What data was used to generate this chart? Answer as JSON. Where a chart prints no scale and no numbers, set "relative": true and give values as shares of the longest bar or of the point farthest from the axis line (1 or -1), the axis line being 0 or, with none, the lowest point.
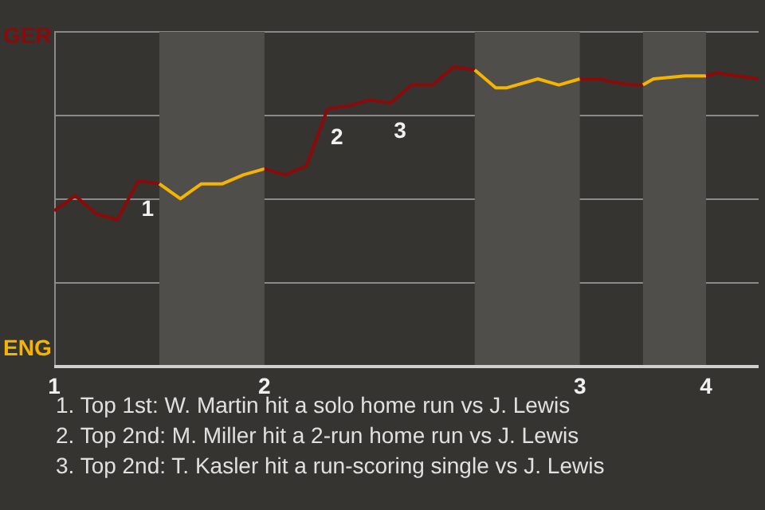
{
  "chart_data": {
    "type": "line",
    "relative": true,
    "categories": [
      "1",
      null,
      null,
      null,
      null,
      null,
      null,
      null,
      null,
      null,
      null,
      null,
      null,
      null,
      null,
      null,
      null,
      null,
      null,
      null,
      "2",
      null,
      null,
      null,
      null,
      null,
      null,
      null,
      null,
      null,
      null,
      null,
      null,
      null,
      null,
      null,
      null,
      null,
      null,
      null,
      null,
      null,
      null,
      null,
      null,
      null,
      null,
      null,
      null,
      null,
      "3",
      null,
      null,
      null,
      null,
      null,
      null,
      null,
      null,
      null,
      null,
      null,
      "4",
      null,
      null,
      null,
      null,
      null
    ],
    "series": [
      {
        "color": "#8b0a0a",
        "values": [
          0.52,
          null,
          0.57,
          null,
          0.51,
          null,
          0.49,
          null,
          0.62,
          null,
          0.61,
          null,
          null,
          null,
          null,
          null,
          null,
          null,
          null,
          null,
          null,
          null,
          null,
          null,
          null,
          null,
          null,
          null,
          null,
          null,
          null,
          null,
          null,
          null,
          null,
          null,
          null,
          null,
          null,
          null,
          null,
          null,
          null,
          null,
          null,
          null,
          null,
          null,
          null,
          null,
          null,
          null,
          null,
          null,
          null,
          null,
          null,
          null,
          null,
          null,
          null,
          null,
          null,
          null,
          null,
          null,
          null,
          null
        ]
      },
      {
        "color": "#f5b400",
        "values": [
          null,
          null,
          null,
          null,
          null,
          null,
          null,
          null,
          null,
          null,
          0.61,
          null,
          0.56,
          null,
          0.61,
          null,
          0.61,
          null,
          0.64,
          null,
          0.66,
          null,
          null,
          null,
          null,
          null,
          null,
          null,
          null,
          null,
          null,
          null,
          null,
          null,
          null,
          null,
          null,
          null,
          null,
          null,
          null,
          null,
          null,
          null,
          null,
          null,
          null,
          null,
          null,
          null,
          null,
          null,
          null,
          null,
          null,
          null,
          null,
          null,
          null,
          null,
          null,
          null,
          null,
          null,
          null,
          null,
          null,
          null
        ]
      },
      {
        "color": "#8b0a0a",
        "values": [
          null,
          null,
          null,
          null,
          null,
          null,
          null,
          null,
          null,
          null,
          null,
          null,
          null,
          null,
          null,
          null,
          null,
          null,
          null,
          null,
          0.66,
          null,
          0.64,
          null,
          0.67,
          null,
          0.86,
          null,
          0.87,
          null,
          0.89,
          null,
          0.88,
          null,
          0.94,
          null,
          0.94,
          null,
          1,
          null,
          0.99,
          null,
          null,
          null,
          null,
          null,
          null,
          null,
          null,
          null,
          null,
          null,
          null,
          null,
          null,
          null,
          null,
          null,
          null,
          null,
          null,
          null,
          null,
          null,
          null,
          null,
          null,
          null
        ]
      },
      {
        "color": "#f5b400",
        "values": [
          null,
          null,
          null,
          null,
          null,
          null,
          null,
          null,
          null,
          null,
          null,
          null,
          null,
          null,
          null,
          null,
          null,
          null,
          null,
          null,
          null,
          null,
          null,
          null,
          null,
          null,
          null,
          null,
          null,
          null,
          null,
          null,
          null,
          null,
          null,
          null,
          null,
          null,
          null,
          null,
          0.99,
          null,
          0.93,
          0.93,
          null,
          null,
          0.96,
          null,
          0.94,
          null,
          0.96,
          null,
          null,
          null,
          null,
          null,
          null,
          null,
          null,
          null,
          null,
          null,
          null,
          null,
          null,
          null,
          null,
          null
        ]
      },
      {
        "color": "#8b0a0a",
        "values": [
          null,
          null,
          null,
          null,
          null,
          null,
          null,
          null,
          null,
          null,
          null,
          null,
          null,
          null,
          null,
          null,
          null,
          null,
          null,
          null,
          null,
          null,
          null,
          null,
          null,
          null,
          null,
          null,
          null,
          null,
          null,
          null,
          null,
          null,
          null,
          null,
          null,
          null,
          null,
          null,
          null,
          null,
          null,
          null,
          null,
          null,
          null,
          null,
          null,
          null,
          0.96,
          null,
          0.96,
          0.95,
          null,
          0.94,
          0.94,
          null,
          null,
          null,
          null,
          null,
          null,
          null,
          null,
          null,
          null,
          null
        ]
      },
      {
        "color": "#f5b400",
        "values": [
          null,
          null,
          null,
          null,
          null,
          null,
          null,
          null,
          null,
          null,
          null,
          null,
          null,
          null,
          null,
          null,
          null,
          null,
          null,
          null,
          null,
          null,
          null,
          null,
          null,
          null,
          null,
          null,
          null,
          null,
          null,
          null,
          null,
          null,
          null,
          null,
          null,
          null,
          null,
          null,
          null,
          null,
          null,
          null,
          null,
          null,
          null,
          null,
          null,
          null,
          null,
          null,
          null,
          null,
          null,
          null,
          0.94,
          0.96,
          null,
          null,
          0.97,
          null,
          0.97,
          null,
          null,
          null,
          null,
          null
        ]
      },
      {
        "color": "#8b0a0a",
        "values": [
          null,
          null,
          null,
          null,
          null,
          null,
          null,
          null,
          null,
          null,
          null,
          null,
          null,
          null,
          null,
          null,
          null,
          null,
          null,
          null,
          null,
          null,
          null,
          null,
          null,
          null,
          null,
          null,
          null,
          null,
          null,
          null,
          null,
          null,
          null,
          null,
          null,
          null,
          null,
          null,
          null,
          null,
          null,
          null,
          null,
          null,
          null,
          null,
          null,
          null,
          null,
          null,
          null,
          null,
          null,
          null,
          null,
          null,
          null,
          null,
          null,
          null,
          0.97,
          0.98,
          null,
          0.97,
          null,
          0.96
        ]
      }
    ],
    "grid": "y",
    "marker": "none",
    "annotations": [
      "GER",
      "ENG",
      {
        "text": "1",
        "y": 0.62
      },
      {
        "text": "2",
        "y": 0.86
      },
      {
        "text": "3",
        "y": 0.88
      },
      "1. Top 1st: W. Martin hit a solo home run vs J. Lewis",
      "2. Top 2nd: M. Miller hit a 2-run home run vs J. Lewis",
      "3. Top 2nd: T. Kasler hit a run-scoring single vs J. Lewis"
    ]
  }
}
